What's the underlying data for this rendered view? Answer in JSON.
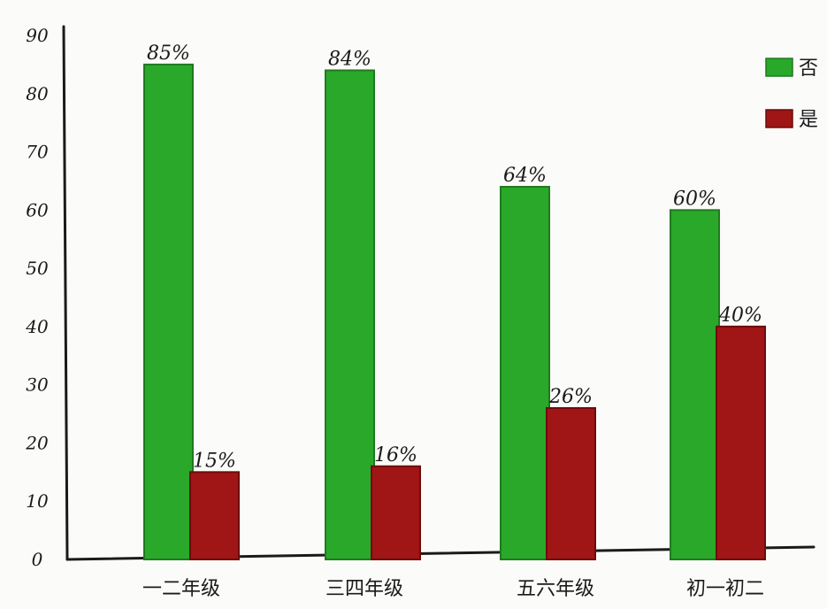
{
  "chart_data": {
    "type": "bar",
    "categories": [
      "一二年级",
      "三四年级",
      "五六年级",
      "初一初二"
    ],
    "series": [
      {
        "name": "否",
        "values": [
          85,
          84,
          64,
          60
        ],
        "labels": [
          "85%",
          "84%",
          "64%",
          "60%"
        ],
        "color": "#2aa82a"
      },
      {
        "name": "是",
        "values": [
          15,
          16,
          26,
          40
        ],
        "labels": [
          "15%",
          "16%",
          "26%",
          "40%"
        ],
        "color": "#a01515"
      }
    ],
    "yticks": [
      0,
      10,
      20,
      30,
      40,
      50,
      60,
      70,
      80,
      90
    ],
    "ylim": [
      0,
      90
    ],
    "title": "",
    "xlabel": "",
    "ylabel": "",
    "legend_position": "top-right",
    "grid": false
  }
}
